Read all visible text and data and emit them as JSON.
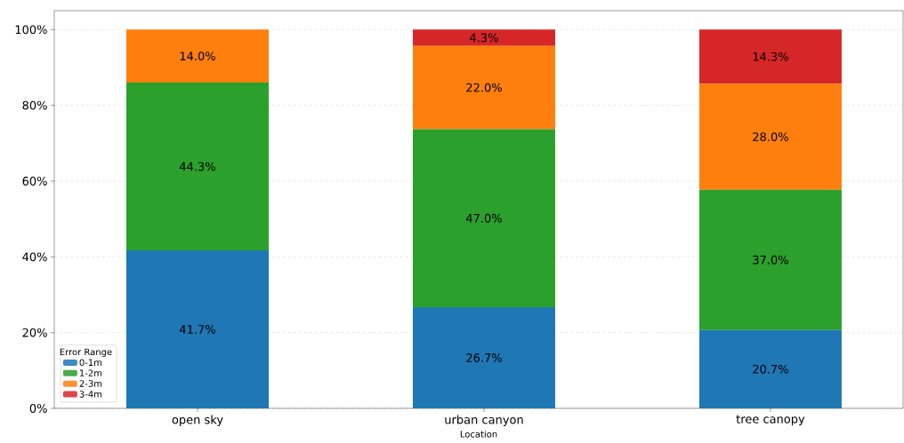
{
  "chart_data": {
    "type": "bar",
    "stacked": true,
    "xlabel": "Location",
    "legend_title": "Error Range",
    "categories": [
      "open sky",
      "urban canyon",
      "tree canopy"
    ],
    "series": [
      {
        "name": "0-1m",
        "color": "#1f77b4",
        "values": [
          41.7,
          26.7,
          20.7
        ],
        "value_labels": [
          "41.7%",
          "26.7%",
          "20.7%"
        ]
      },
      {
        "name": "1-2m",
        "color": "#2ca02c",
        "values": [
          44.3,
          47.0,
          37.0
        ],
        "value_labels": [
          "44.3%",
          "47.0%",
          "37.0%"
        ]
      },
      {
        "name": "2-3m",
        "color": "#ff7f0e",
        "values": [
          14.0,
          22.0,
          28.0
        ],
        "value_labels": [
          "14.0%",
          "22.0%",
          "28.0%"
        ]
      },
      {
        "name": "3-4m",
        "color": "#d62728",
        "values": [
          0,
          4.3,
          14.3
        ],
        "value_labels": [
          null,
          "4.3%",
          "14.3%"
        ]
      }
    ],
    "ylim": [
      0,
      105
    ],
    "yticks": [
      {
        "value": 0,
        "label": "0%"
      },
      {
        "value": 20,
        "label": "20%"
      },
      {
        "value": 40,
        "label": "40%"
      },
      {
        "value": 60,
        "label": "60%"
      },
      {
        "value": 80,
        "label": "80%"
      },
      {
        "value": 100,
        "label": "100%"
      }
    ],
    "grid": "y",
    "legend": "bottom left"
  }
}
